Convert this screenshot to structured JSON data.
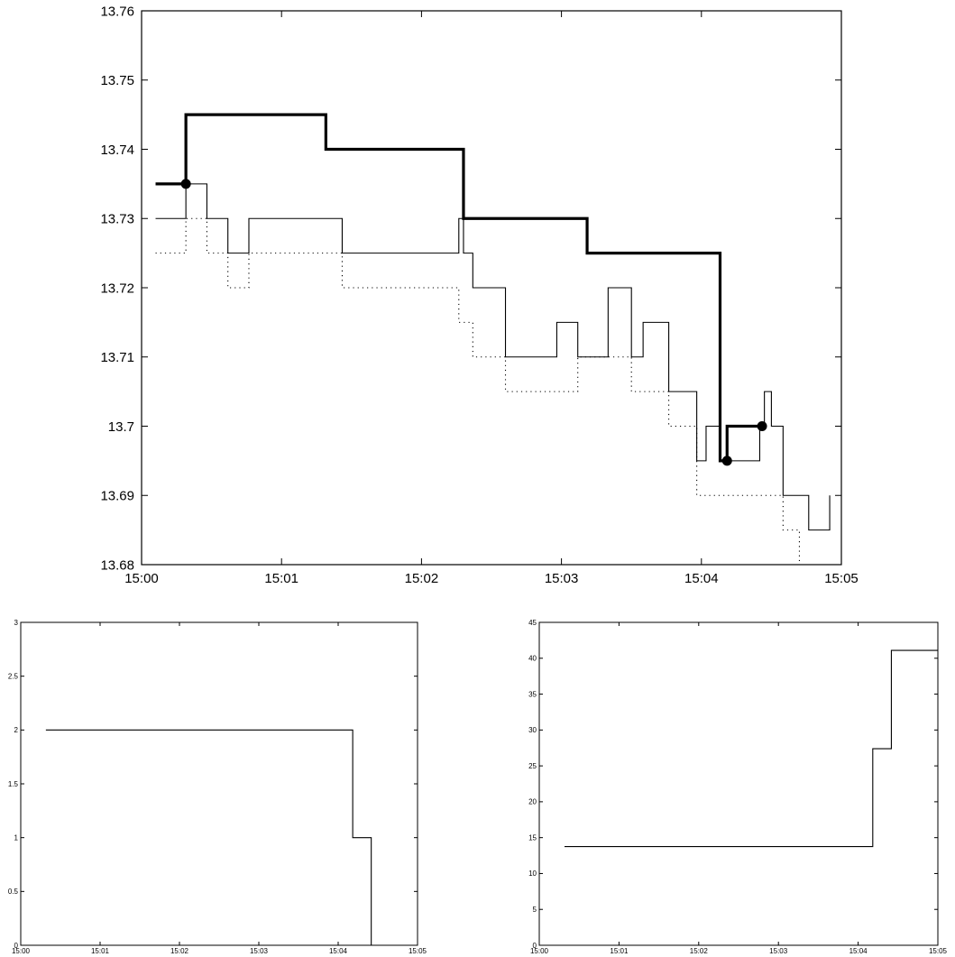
{
  "chart_data": [
    {
      "type": "line",
      "step": true,
      "xlim": [
        "15:00",
        "15:05"
      ],
      "ylim": [
        13.68,
        13.76
      ],
      "x_ticks": [
        "15:00",
        "15:01",
        "15:02",
        "15:03",
        "15:04",
        "15:05"
      ],
      "y_ticks": [
        "13.68",
        "13.69",
        "13.7",
        "13.71",
        "13.72",
        "13.73",
        "13.74",
        "13.75",
        "13.76"
      ],
      "series": [
        {
          "style": "thick-solid",
          "x": [
            "15:00:06",
            "15:00:19",
            "15:01:19",
            "15:02:18",
            "15:03:11",
            "15:04:08",
            "15:04:11",
            "15:04:25"
          ],
          "y": [
            13.735,
            13.745,
            13.74,
            13.73,
            13.725,
            13.695,
            13.7,
            13.7
          ]
        },
        {
          "style": "thin-solid",
          "x": [
            "15:00:06",
            "15:00:19",
            "15:00:28",
            "15:00:37",
            "15:00:46",
            "15:01:26",
            "15:02:16",
            "15:02:18",
            "15:02:22",
            "15:02:36",
            "15:02:58",
            "15:03:07",
            "15:03:20",
            "15:03:30",
            "15:03:35",
            "15:03:46",
            "15:03:58",
            "15:04:02",
            "15:04:08",
            "15:04:20",
            "15:04:25",
            "15:04:27",
            "15:04:30",
            "15:04:35",
            "15:04:46",
            "15:04:55"
          ],
          "y": [
            13.73,
            13.735,
            13.73,
            13.725,
            13.73,
            13.725,
            13.73,
            13.725,
            13.72,
            13.71,
            13.715,
            13.71,
            13.72,
            13.71,
            13.715,
            13.705,
            13.695,
            13.7,
            13.695,
            13.695,
            13.7,
            13.705,
            13.7,
            13.69,
            13.685,
            13.69
          ]
        },
        {
          "style": "dotted",
          "x": [
            "15:00:06",
            "15:00:19",
            "15:00:28",
            "15:00:37",
            "15:00:46",
            "15:01:26",
            "15:02:16",
            "15:02:22",
            "15:02:36",
            "15:03:07",
            "15:03:20",
            "15:03:30",
            "15:03:35",
            "15:03:46",
            "15:03:58",
            "15:04:25",
            "15:04:35",
            "15:04:42"
          ],
          "y": [
            13.725,
            13.73,
            13.725,
            13.72,
            13.725,
            13.72,
            13.715,
            13.71,
            13.705,
            13.71,
            13.71,
            13.705,
            13.705,
            13.7,
            13.69,
            13.69,
            13.685,
            13.68
          ]
        }
      ],
      "markers": [
        {
          "x": "15:00:19",
          "y": 13.735
        },
        {
          "x": "15:04:11",
          "y": 13.695
        },
        {
          "x": "15:04:26",
          "y": 13.7
        }
      ]
    },
    {
      "type": "line",
      "step": true,
      "xlim": [
        "15:00",
        "15:05"
      ],
      "ylim": [
        0,
        3
      ],
      "x_ticks": [
        "15:00",
        "15:01",
        "15:02",
        "15:03",
        "15:04",
        "15:05"
      ],
      "y_ticks": [
        "0",
        "0.5",
        "1",
        "1.5",
        "2",
        "2.5",
        "3"
      ],
      "series": [
        {
          "style": "thin-solid",
          "x": [
            "15:00:19",
            "15:04:11",
            "15:04:25"
          ],
          "y": [
            2,
            1,
            0
          ]
        }
      ]
    },
    {
      "type": "line",
      "step": true,
      "xlim": [
        "15:00",
        "15:05"
      ],
      "ylim": [
        0,
        45
      ],
      "x_ticks": [
        "15:00",
        "15:01",
        "15:02",
        "15:03",
        "15:04",
        "15:05"
      ],
      "y_ticks": [
        "0",
        "5",
        "10",
        "15",
        "20",
        "25",
        "30",
        "35",
        "40",
        "45"
      ],
      "series": [
        {
          "style": "thin-solid",
          "x": [
            "15:00:19",
            "15:04:11",
            "15:04:25",
            "15:05:00"
          ],
          "y": [
            13.75,
            27.4,
            41.1,
            41.1
          ]
        }
      ]
    }
  ]
}
